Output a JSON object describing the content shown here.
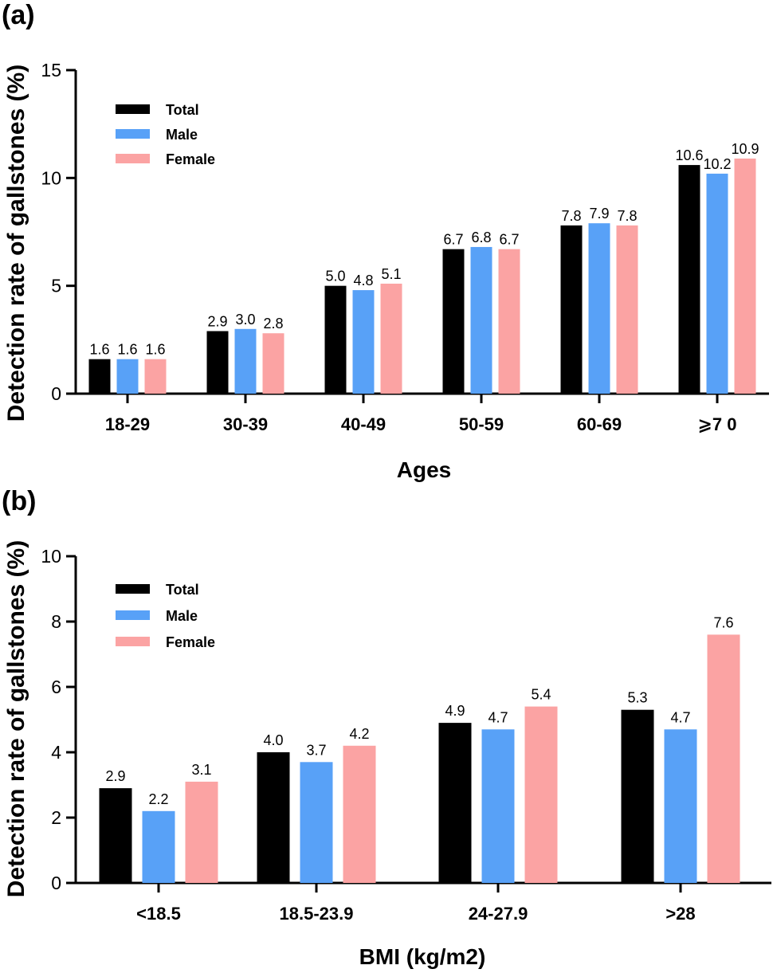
{
  "chart_data": [
    {
      "type": "bar",
      "panel": "(a)",
      "xlabel": "Ages",
      "ylabel": "Detection rate of gallstones (%)",
      "ylim": [
        0,
        15
      ],
      "yticks": [
        "0",
        "5",
        "10",
        "15"
      ],
      "categories": [
        "18-29",
        "30-39",
        "40-49",
        "50-59",
        "60-69",
        "⩾7 0"
      ],
      "legend_position": "top-left",
      "series": [
        {
          "name": "Total",
          "color": "#000000",
          "values": [
            1.6,
            2.9,
            5.0,
            6.7,
            7.8,
            10.6
          ],
          "labels": [
            "1.6",
            "2.9",
            "5.0",
            "6.7",
            "7.8",
            "10.6"
          ]
        },
        {
          "name": "Male",
          "color": "#58a1f7",
          "values": [
            1.6,
            3.0,
            4.8,
            6.8,
            7.9,
            10.2
          ],
          "labels": [
            "1.6",
            "3.0",
            "4.8",
            "6.8",
            "7.9",
            "10.2"
          ]
        },
        {
          "name": "Female",
          "color": "#fba3a3",
          "values": [
            1.6,
            2.8,
            5.1,
            6.7,
            7.8,
            10.9
          ],
          "labels": [
            "1.6",
            "2.8",
            "5.1",
            "6.7",
            "7.8",
            "10.9"
          ]
        }
      ]
    },
    {
      "type": "bar",
      "panel": "(b)",
      "xlabel": "BMI (kg/m2)",
      "ylabel": "Detection rate of gallstones (%)",
      "ylim": [
        0,
        10
      ],
      "yticks": [
        "0",
        "2",
        "4",
        "6",
        "8",
        "10"
      ],
      "categories": [
        "<18.5",
        "18.5-23.9",
        "24-27.9",
        ">28"
      ],
      "legend_position": "top-left",
      "series": [
        {
          "name": "Total",
          "color": "#000000",
          "values": [
            2.9,
            4.0,
            4.9,
            5.3
          ],
          "labels": [
            "2.9",
            "4.0",
            "4.9",
            "5.3"
          ]
        },
        {
          "name": "Male",
          "color": "#58a1f7",
          "values": [
            2.2,
            3.7,
            4.7,
            4.7
          ],
          "labels": [
            "2.2",
            "3.7",
            "4.7",
            "4.7"
          ]
        },
        {
          "name": "Female",
          "color": "#fba3a3",
          "values": [
            3.1,
            4.2,
            5.4,
            7.6
          ],
          "labels": [
            "3.1",
            "4.2",
            "5.4",
            "7.6"
          ]
        }
      ]
    }
  ]
}
